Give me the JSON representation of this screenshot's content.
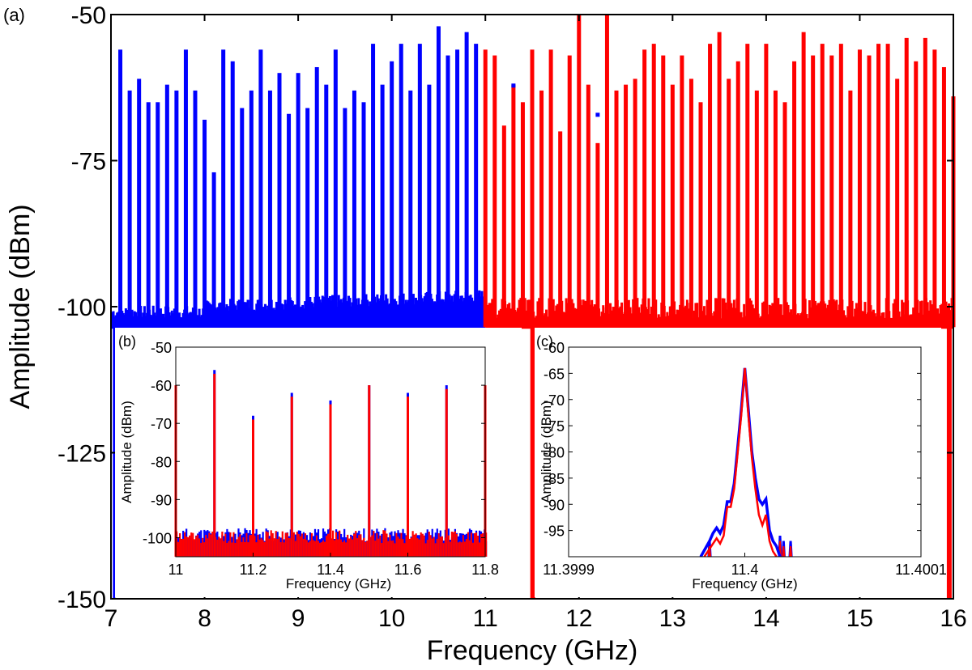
{
  "panel_labels": {
    "a": "(a)",
    "b": "(b)",
    "c": "(c)"
  },
  "colors": {
    "series_low": "#0000ff",
    "series_high": "#ff0000",
    "axis": "#000000"
  },
  "chart_data": [
    {
      "panel": "(a)",
      "type": "bar",
      "xlabel": "Frequency (GHz)",
      "ylabel": "Amplitude (dBm)",
      "xlim": [
        7,
        16
      ],
      "ylim": [
        -150,
        -50
      ],
      "x_ticks": [
        7,
        8,
        9,
        10,
        11,
        12,
        13,
        14,
        15,
        16
      ],
      "y_ticks": [
        -50,
        -75,
        -100,
        -125,
        -150
      ],
      "baseline": -103.5,
      "grid": false,
      "series": [
        {
          "color": "#0000ff",
          "x": [
            7.1,
            7.2,
            7.3,
            7.4,
            7.5,
            7.6,
            7.7,
            7.8,
            7.9,
            8.0,
            8.1,
            8.2,
            8.3,
            8.4,
            8.5,
            8.6,
            8.7,
            8.8,
            8.9,
            9.0,
            9.1,
            9.2,
            9.3,
            9.4,
            9.5,
            9.6,
            9.7,
            9.8,
            9.9,
            10.0,
            10.1,
            10.2,
            10.3,
            10.4,
            10.5,
            10.6,
            10.7,
            10.8,
            10.9
          ],
          "values": [
            -56,
            -63,
            -61,
            -65,
            -65,
            -62,
            -63,
            -56,
            -63,
            -68,
            -77,
            -56,
            -58,
            -66,
            -63,
            -56,
            -63,
            -60,
            -67,
            -60,
            -66,
            -59,
            -62,
            -56,
            -66,
            -63,
            -65,
            -55,
            -62,
            -58,
            -55,
            -63,
            -55,
            -62,
            -52,
            -57,
            -56,
            -53,
            -55
          ]
        },
        {
          "color": "#ff0000",
          "x": [
            11.0,
            11.1,
            11.2,
            11.3,
            11.4,
            11.5,
            11.6,
            11.7,
            11.8,
            11.9,
            12.0,
            12.1,
            12.2,
            12.3,
            12.4,
            12.5,
            12.6,
            12.7,
            12.8,
            12.9,
            13.0,
            13.1,
            13.2,
            13.3,
            13.4,
            13.5,
            13.6,
            13.7,
            13.8,
            13.9,
            14.0,
            14.1,
            14.2,
            14.3,
            14.4,
            14.5,
            14.6,
            14.7,
            14.8,
            14.9,
            15.0,
            15.1,
            15.2,
            15.3,
            15.4,
            15.5,
            15.6,
            15.7,
            15.8,
            15.9,
            16.0
          ],
          "values": [
            -56,
            -57,
            -69,
            -62,
            -65,
            -56,
            -63,
            -56,
            -70,
            -57,
            -50,
            -62,
            -72,
            -50,
            -63,
            -62,
            -61,
            -56,
            -55,
            -57,
            -62,
            -57,
            -61,
            -65,
            -55,
            -53,
            -61,
            -58,
            -55,
            -63,
            -55,
            -63,
            -65,
            -58,
            -53,
            -57,
            -55,
            -57,
            -55,
            -63,
            -56,
            -57,
            -55,
            -55,
            -61,
            -54,
            -58,
            -54,
            -56,
            -59,
            -64
          ]
        }
      ]
    },
    {
      "panel": "(b)",
      "type": "bar",
      "xlabel": "Frequency (GHz)",
      "ylabel": "Amplitude (dBm)",
      "xlim": [
        11,
        11.8
      ],
      "ylim": [
        -105,
        -50
      ],
      "x_ticks": [
        "11",
        "11.2",
        "11.4",
        "11.6",
        "11.8"
      ],
      "y_ticks": [
        -50,
        -60,
        -70,
        -80,
        -90,
        -100
      ],
      "grid": false,
      "series": [
        {
          "color": "#0000ff",
          "x": [
            11.1,
            11.2,
            11.3,
            11.4,
            11.5,
            11.6,
            11.7
          ],
          "values": [
            -56,
            -68,
            -62,
            -64,
            -60,
            -62,
            -60
          ]
        },
        {
          "color": "#ff0000",
          "x": [
            11.0,
            11.1,
            11.2,
            11.3,
            11.4,
            11.5,
            11.6,
            11.7,
            11.8
          ],
          "values": [
            -60,
            -57,
            -69,
            -63,
            -65,
            -60,
            -63,
            -61,
            -60
          ]
        }
      ]
    },
    {
      "panel": "(c)",
      "type": "line",
      "xlabel": "Frequency (GHz)",
      "ylabel": "Amplitude (dBm)",
      "xlim": [
        11.3999,
        11.4001
      ],
      "ylim": [
        -100,
        -60
      ],
      "x_ticks": [
        "11.3999",
        "11.4",
        "11.4001"
      ],
      "y_ticks": [
        -60,
        -65,
        -70,
        -75,
        -80,
        -85,
        -90,
        -95
      ],
      "grid": false,
      "series": [
        {
          "color": "#0000ff",
          "x": [
            11.399975,
            11.39998,
            11.399982,
            11.399984,
            11.399986,
            11.399988,
            11.39999,
            11.399992,
            11.399994,
            11.399996,
            11.399998,
            11.4,
            11.400002,
            11.400004,
            11.400006,
            11.400008,
            11.40001,
            11.400012,
            11.400014,
            11.400016,
            11.400018,
            11.40002
          ],
          "values": [
            -100,
            -97,
            -95.5,
            -94.5,
            -95.5,
            -94,
            -89.5,
            -89.5,
            -86,
            -79,
            -72,
            -64,
            -72,
            -80,
            -85,
            -89,
            -90,
            -89,
            -95,
            -97,
            -98,
            -100
          ]
        },
        {
          "color": "#ff0000",
          "x": [
            11.399977,
            11.39998,
            11.399982,
            11.399984,
            11.399986,
            11.399988,
            11.39999,
            11.399992,
            11.399994,
            11.399996,
            11.399998,
            11.4,
            11.400002,
            11.400004,
            11.400006,
            11.400008,
            11.40001,
            11.400012,
            11.400014,
            11.400016,
            11.400018
          ],
          "values": [
            -100,
            -98.5,
            -97.5,
            -96.5,
            -97.5,
            -96,
            -90.5,
            -90.5,
            -87,
            -80,
            -73,
            -64,
            -73,
            -81,
            -87,
            -92,
            -94,
            -92,
            -97,
            -99,
            -100
          ]
        }
      ]
    }
  ]
}
